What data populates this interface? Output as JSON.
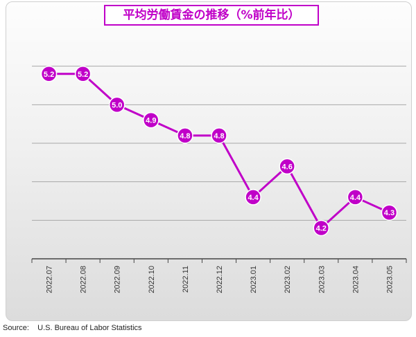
{
  "chart_data": {
    "type": "line",
    "title": "平均労働賃金の推移（%前年比）",
    "categories": [
      "2022.07",
      "2022.08",
      "2022.09",
      "2022.10",
      "2022.11",
      "2022.12",
      "2023.01",
      "2023.02",
      "2023.03",
      "2023.04",
      "2023.05"
    ],
    "series": [
      {
        "values": [
          5.2,
          5.2,
          5.0,
          4.9,
          4.8,
          4.8,
          4.4,
          4.6,
          4.2,
          4.4,
          4.3
        ]
      }
    ],
    "value_labels": [
      "5.2",
      "5.2",
      "5.0",
      "4.9",
      "4.8",
      "4.8",
      "4.4",
      "4.6",
      "4.2",
      "4.4",
      "4.3"
    ],
    "ylim": [
      4.0,
      5.5
    ],
    "y_gridlines": [
      4.0,
      4.25,
      4.5,
      4.75,
      5.0,
      5.25
    ],
    "grid": true,
    "color": "#c000c8",
    "source": "Source:    U.S. Bureau of Labor Statistics"
  }
}
